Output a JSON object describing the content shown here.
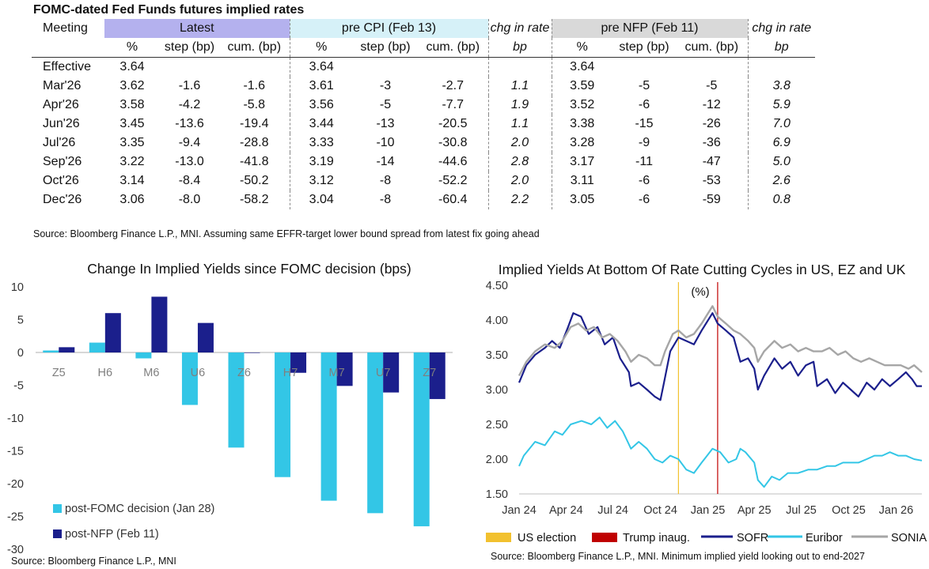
{
  "table": {
    "title": "FOMC-dated Fed Funds futures implied rates",
    "headers": {
      "meeting": "Meeting",
      "latest": "Latest",
      "pre_cpi": "pre CPI (Feb 13)",
      "chg1": "chg in rate",
      "pre_nfp": "pre NFP (Feb 11)",
      "chg2": "chg in rate"
    },
    "subheaders": [
      "%",
      "step (bp)",
      "cum. (bp)",
      "%",
      "step (bp)",
      "cum. (bp)",
      "bp",
      "%",
      "step (bp)",
      "cum. (bp)",
      "bp"
    ],
    "rows": [
      [
        "Effective",
        "3.64",
        "",
        "",
        "3.64",
        "",
        "",
        "",
        "3.64",
        "",
        "",
        ""
      ],
      [
        "Mar'26",
        "3.62",
        "-1.6",
        "-1.6",
        "3.61",
        "-3",
        "-2.7",
        "1.1",
        "3.59",
        "-5",
        "-5",
        "3.8"
      ],
      [
        "Apr'26",
        "3.58",
        "-4.2",
        "-5.8",
        "3.56",
        "-5",
        "-7.7",
        "1.9",
        "3.52",
        "-6",
        "-12",
        "5.9"
      ],
      [
        "Jun'26",
        "3.45",
        "-13.6",
        "-19.4",
        "3.44",
        "-13",
        "-20.5",
        "1.1",
        "3.38",
        "-15",
        "-26",
        "7.0"
      ],
      [
        "Jul'26",
        "3.35",
        "-9.4",
        "-28.8",
        "3.33",
        "-10",
        "-30.8",
        "2.0",
        "3.28",
        "-9",
        "-36",
        "6.9"
      ],
      [
        "Sep'26",
        "3.22",
        "-13.0",
        "-41.8",
        "3.19",
        "-14",
        "-44.6",
        "2.8",
        "3.17",
        "-11",
        "-47",
        "5.0"
      ],
      [
        "Oct'26",
        "3.14",
        "-8.4",
        "-50.2",
        "3.12",
        "-8",
        "-52.2",
        "2.0",
        "3.11",
        "-6",
        "-53",
        "2.6"
      ],
      [
        "Dec'26",
        "3.06",
        "-8.0",
        "-58.2",
        "3.04",
        "-8",
        "-60.4",
        "2.2",
        "3.05",
        "-6",
        "-59",
        "0.8"
      ]
    ],
    "source": "Source: Bloomberg Finance L.P., MNI. Assuming same EFFR-target lower bound spread from latest fix going ahead"
  },
  "chart_data": [
    {
      "type": "bar",
      "title": "Change In Implied Yields since FOMC decision (bps)",
      "categories": [
        "Z5",
        "H6",
        "M6",
        "U6",
        "Z6",
        "H7",
        "M7",
        "U7",
        "Z7"
      ],
      "series": [
        {
          "name": "post-FOMC decision (Jan 28)",
          "color": "#33c6e6",
          "values": [
            0.3,
            1.5,
            -0.9,
            -8.0,
            -14.5,
            -19.0,
            -22.6,
            -24.5,
            -26.5
          ]
        },
        {
          "name": "post-NFP (Feb 11)",
          "color": "#1b1f8c",
          "values": [
            0.8,
            6.0,
            8.5,
            4.5,
            0.0,
            -3.1,
            -5.1,
            -6.1,
            -7.1
          ]
        }
      ],
      "ylim": [
        -30,
        10
      ],
      "yticks": [
        10,
        5,
        0,
        -5,
        -10,
        -15,
        -20,
        -25,
        -30
      ],
      "legend": "bottom-left",
      "source": "Source: Bloomberg Finance L.P., MNI"
    },
    {
      "type": "line",
      "title": "Implied Yields At Bottom Of Rate Cutting Cycles in US, EZ and UK",
      "ylabel": "(%)",
      "ylim": [
        1.5,
        4.5
      ],
      "yticks": [
        "4.50",
        "4.00",
        "3.50",
        "3.00",
        "2.50",
        "2.00",
        "1.50"
      ],
      "xticks": [
        "Jan 24",
        "Apr 24",
        "Jul 24",
        "Oct 24",
        "Jan 25",
        "Apr 25",
        "Jul 25",
        "Oct 25",
        "Jan 26"
      ],
      "xtick_dates": [
        "2024-01-01",
        "2024-04-01",
        "2024-07-01",
        "2024-10-01",
        "2025-01-01",
        "2025-04-01",
        "2025-07-01",
        "2025-10-01",
        "2026-01-01"
      ],
      "x_range": [
        "2024-01-01",
        "2026-02-20"
      ],
      "vlines": [
        {
          "name": "US election",
          "date": "2024-11-05",
          "color": "#f2c12e"
        },
        {
          "name": "Trump inaug.",
          "date": "2025-01-20",
          "color": "#c00000"
        }
      ],
      "series": [
        {
          "name": "SOFR",
          "color": "#1b1f8c",
          "width": 2.2,
          "points": [
            [
              "2024-01-01",
              3.1
            ],
            [
              "2024-01-15",
              3.35
            ],
            [
              "2024-02-01",
              3.5
            ],
            [
              "2024-02-20",
              3.6
            ],
            [
              "2024-03-05",
              3.7
            ],
            [
              "2024-03-20",
              3.6
            ],
            [
              "2024-04-05",
              3.9
            ],
            [
              "2024-04-15",
              4.1
            ],
            [
              "2024-04-30",
              4.05
            ],
            [
              "2024-05-15",
              3.8
            ],
            [
              "2024-06-01",
              3.9
            ],
            [
              "2024-06-15",
              3.65
            ],
            [
              "2024-07-01",
              3.75
            ],
            [
              "2024-07-15",
              3.45
            ],
            [
              "2024-08-01",
              3.25
            ],
            [
              "2024-08-05",
              3.05
            ],
            [
              "2024-08-20",
              3.1
            ],
            [
              "2024-09-05",
              3.0
            ],
            [
              "2024-09-20",
              2.9
            ],
            [
              "2024-10-01",
              2.85
            ],
            [
              "2024-10-08",
              3.1
            ],
            [
              "2024-10-20",
              3.55
            ],
            [
              "2024-11-05",
              3.75
            ],
            [
              "2024-11-20",
              3.7
            ],
            [
              "2024-12-05",
              3.65
            ],
            [
              "2024-12-20",
              3.85
            ],
            [
              "2025-01-10",
              4.1
            ],
            [
              "2025-01-20",
              3.95
            ],
            [
              "2025-02-05",
              3.85
            ],
            [
              "2025-02-20",
              3.75
            ],
            [
              "2025-03-05",
              3.4
            ],
            [
              "2025-03-20",
              3.45
            ],
            [
              "2025-04-01",
              3.3
            ],
            [
              "2025-04-08",
              3.0
            ],
            [
              "2025-04-20",
              3.2
            ],
            [
              "2025-05-10",
              3.45
            ],
            [
              "2025-05-25",
              3.3
            ],
            [
              "2025-06-10",
              3.4
            ],
            [
              "2025-06-25",
              3.2
            ],
            [
              "2025-07-10",
              3.35
            ],
            [
              "2025-07-25",
              3.4
            ],
            [
              "2025-08-01",
              3.05
            ],
            [
              "2025-08-20",
              3.15
            ],
            [
              "2025-09-05",
              2.95
            ],
            [
              "2025-09-20",
              3.1
            ],
            [
              "2025-10-05",
              3.0
            ],
            [
              "2025-10-20",
              2.9
            ],
            [
              "2025-11-05",
              3.1
            ],
            [
              "2025-11-20",
              3.0
            ],
            [
              "2025-12-05",
              3.15
            ],
            [
              "2025-12-20",
              3.05
            ],
            [
              "2026-01-05",
              3.15
            ],
            [
              "2026-01-20",
              3.25
            ],
            [
              "2026-02-01",
              3.15
            ],
            [
              "2026-02-10",
              3.05
            ],
            [
              "2026-02-20",
              3.05
            ]
          ]
        },
        {
          "name": "Euribor",
          "color": "#33c6e6",
          "width": 2,
          "points": [
            [
              "2024-01-01",
              1.9
            ],
            [
              "2024-01-10",
              2.05
            ],
            [
              "2024-02-01",
              2.25
            ],
            [
              "2024-02-20",
              2.2
            ],
            [
              "2024-03-10",
              2.4
            ],
            [
              "2024-03-25",
              2.35
            ],
            [
              "2024-04-10",
              2.5
            ],
            [
              "2024-05-01",
              2.55
            ],
            [
              "2024-05-20",
              2.5
            ],
            [
              "2024-06-05",
              2.6
            ],
            [
              "2024-06-20",
              2.45
            ],
            [
              "2024-07-05",
              2.55
            ],
            [
              "2024-07-20",
              2.4
            ],
            [
              "2024-08-05",
              2.15
            ],
            [
              "2024-08-20",
              2.25
            ],
            [
              "2024-09-05",
              2.15
            ],
            [
              "2024-09-20",
              2.0
            ],
            [
              "2024-10-05",
              1.95
            ],
            [
              "2024-10-20",
              2.05
            ],
            [
              "2024-11-05",
              2.0
            ],
            [
              "2024-11-20",
              1.85
            ],
            [
              "2024-12-05",
              1.8
            ],
            [
              "2024-12-20",
              1.95
            ],
            [
              "2025-01-10",
              2.15
            ],
            [
              "2025-01-25",
              2.1
            ],
            [
              "2025-02-10",
              1.95
            ],
            [
              "2025-02-25",
              2.0
            ],
            [
              "2025-03-05",
              2.15
            ],
            [
              "2025-03-15",
              2.1
            ],
            [
              "2025-04-01",
              1.95
            ],
            [
              "2025-04-08",
              1.7
            ],
            [
              "2025-04-20",
              1.6
            ],
            [
              "2025-05-05",
              1.75
            ],
            [
              "2025-05-20",
              1.7
            ],
            [
              "2025-06-05",
              1.8
            ],
            [
              "2025-06-25",
              1.8
            ],
            [
              "2025-07-15",
              1.85
            ],
            [
              "2025-08-01",
              1.85
            ],
            [
              "2025-08-20",
              1.9
            ],
            [
              "2025-09-05",
              1.9
            ],
            [
              "2025-09-20",
              1.95
            ],
            [
              "2025-10-05",
              1.95
            ],
            [
              "2025-10-20",
              1.95
            ],
            [
              "2025-11-05",
              2.0
            ],
            [
              "2025-11-20",
              2.05
            ],
            [
              "2025-12-05",
              2.05
            ],
            [
              "2025-12-20",
              2.1
            ],
            [
              "2026-01-05",
              2.05
            ],
            [
              "2026-01-20",
              2.05
            ],
            [
              "2026-02-05",
              2.0
            ],
            [
              "2026-02-20",
              1.98
            ]
          ]
        },
        {
          "name": "SONIA",
          "color": "#a6a6a6",
          "width": 2.4,
          "points": [
            [
              "2024-01-01",
              3.2
            ],
            [
              "2024-01-15",
              3.4
            ],
            [
              "2024-02-01",
              3.55
            ],
            [
              "2024-02-20",
              3.65
            ],
            [
              "2024-03-10",
              3.6
            ],
            [
              "2024-03-25",
              3.7
            ],
            [
              "2024-04-10",
              3.9
            ],
            [
              "2024-04-25",
              3.95
            ],
            [
              "2024-05-10",
              3.85
            ],
            [
              "2024-05-25",
              3.9
            ],
            [
              "2024-06-10",
              3.75
            ],
            [
              "2024-06-25",
              3.8
            ],
            [
              "2024-07-10",
              3.7
            ],
            [
              "2024-07-25",
              3.55
            ],
            [
              "2024-08-05",
              3.4
            ],
            [
              "2024-08-20",
              3.5
            ],
            [
              "2024-09-05",
              3.45
            ],
            [
              "2024-09-20",
              3.35
            ],
            [
              "2024-10-01",
              3.35
            ],
            [
              "2024-10-10",
              3.55
            ],
            [
              "2024-10-25",
              3.8
            ],
            [
              "2024-11-05",
              3.85
            ],
            [
              "2024-11-20",
              3.75
            ],
            [
              "2024-12-05",
              3.8
            ],
            [
              "2024-12-20",
              3.95
            ],
            [
              "2025-01-10",
              4.2
            ],
            [
              "2025-01-20",
              4.05
            ],
            [
              "2025-02-05",
              3.95
            ],
            [
              "2025-02-20",
              3.85
            ],
            [
              "2025-03-05",
              3.8
            ],
            [
              "2025-03-20",
              3.7
            ],
            [
              "2025-04-01",
              3.6
            ],
            [
              "2025-04-08",
              3.4
            ],
            [
              "2025-04-20",
              3.55
            ],
            [
              "2025-05-10",
              3.7
            ],
            [
              "2025-05-25",
              3.6
            ],
            [
              "2025-06-10",
              3.65
            ],
            [
              "2025-06-25",
              3.55
            ],
            [
              "2025-07-10",
              3.6
            ],
            [
              "2025-07-25",
              3.55
            ],
            [
              "2025-08-10",
              3.55
            ],
            [
              "2025-08-25",
              3.6
            ],
            [
              "2025-09-10",
              3.5
            ],
            [
              "2025-09-25",
              3.55
            ],
            [
              "2025-10-10",
              3.45
            ],
            [
              "2025-10-25",
              3.4
            ],
            [
              "2025-11-10",
              3.45
            ],
            [
              "2025-11-25",
              3.4
            ],
            [
              "2025-12-10",
              3.35
            ],
            [
              "2025-12-25",
              3.35
            ],
            [
              "2026-01-10",
              3.35
            ],
            [
              "2026-01-25",
              3.3
            ],
            [
              "2026-02-05",
              3.35
            ],
            [
              "2026-02-20",
              3.25
            ]
          ]
        }
      ],
      "legend_labels": [
        "US election",
        "Trump inaug.",
        "SOFR",
        "Euribor",
        "SONIA"
      ],
      "source": "Source: Bloomberg Finance L.P., MNI. Minimum implied yield looking out to end-2027"
    }
  ]
}
